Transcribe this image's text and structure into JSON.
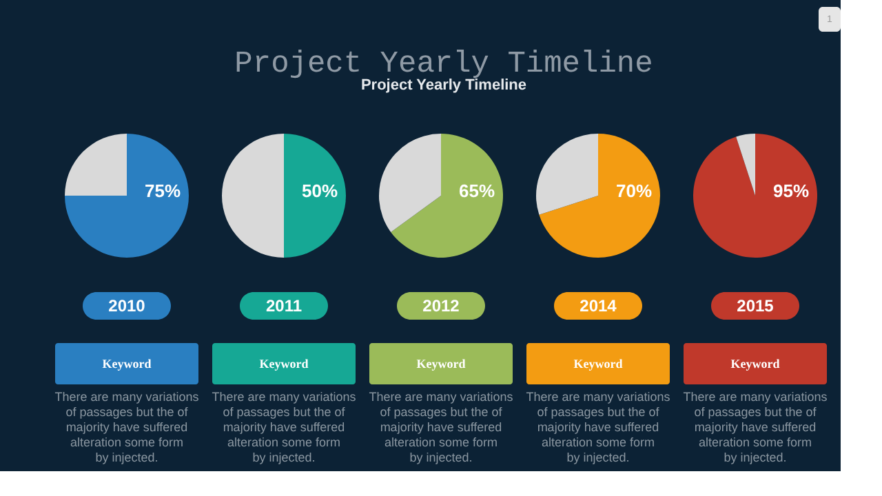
{
  "chart_data": [
    {
      "type": "other",
      "title": "Project Yearly Timeline",
      "subtitle": "Project Yearly Timeline",
      "annotations": [
        "1"
      ]
    },
    {
      "type": "pie",
      "categories": [
        null,
        null
      ],
      "values": [
        75,
        25
      ],
      "colors": [
        "#2a7fc1",
        "#d9d9d9"
      ],
      "value_labels": [
        "75%",
        null
      ],
      "xlabel": "2010",
      "annotations": [
        "Keyword",
        "There are many variations\nof passages but the of\nmajority have suffered\nalteration some form\nby injected."
      ]
    },
    {
      "type": "pie",
      "categories": [
        null,
        null
      ],
      "values": [
        50,
        50
      ],
      "colors": [
        "#16a895",
        "#d9d9d9"
      ],
      "value_labels": [
        "50%",
        null
      ],
      "xlabel": "2011",
      "annotations": [
        "Keyword",
        "There are many variations\nof passages but the of\nmajority have suffered\nalteration some form\nby injected."
      ]
    },
    {
      "type": "pie",
      "categories": [
        null,
        null
      ],
      "values": [
        65,
        35
      ],
      "colors": [
        "#9bbb59",
        "#d9d9d9"
      ],
      "value_labels": [
        "65%",
        null
      ],
      "xlabel": "2012",
      "annotations": [
        "Keyword",
        "There are many variations\nof passages but the of\nmajority have suffered\nalteration some form\nby injected."
      ]
    },
    {
      "type": "pie",
      "categories": [
        null,
        null
      ],
      "values": [
        70,
        30
      ],
      "colors": [
        "#f39c12",
        "#d9d9d9"
      ],
      "value_labels": [
        "70%",
        null
      ],
      "xlabel": "2014",
      "annotations": [
        "Keyword",
        "There are many variations\nof passages but the of\nmajority have suffered\nalteration some form\nby injected."
      ]
    },
    {
      "type": "pie",
      "categories": [
        null,
        null
      ],
      "values": [
        95,
        5
      ],
      "colors": [
        "#c0392b",
        "#d9d9d9"
      ],
      "value_labels": [
        "95%",
        null
      ],
      "xlabel": "2015",
      "annotations": [
        "Keyword",
        "There are many variations\nof passages but the of\nmajority have suffered\nalteration some form\nby injected."
      ]
    }
  ]
}
